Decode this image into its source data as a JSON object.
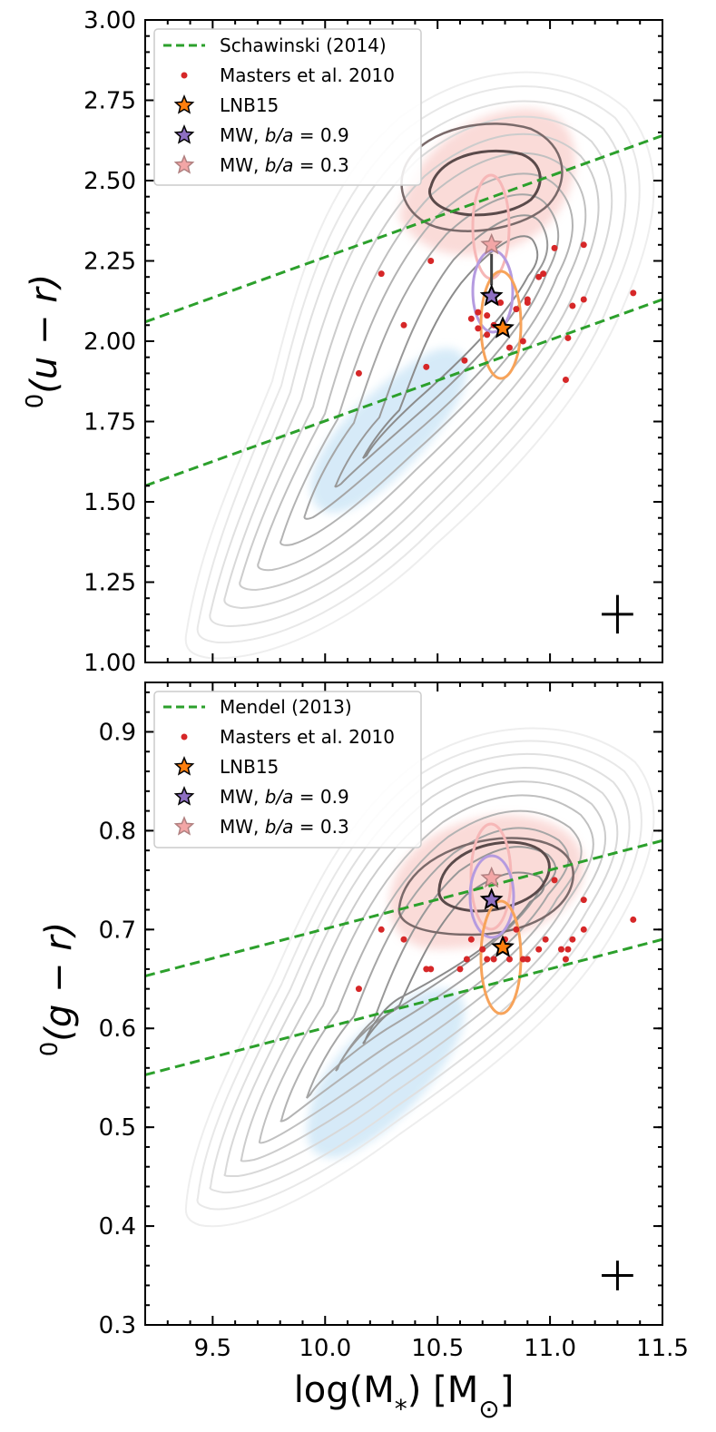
{
  "xlabel_main": "log(M",
  "xlabel_sub": "*",
  "xlabel_unit": ") [M",
  "xlabel_sun": "⊙",
  "xlabel_end": "]",
  "chart_data": [
    {
      "type": "scatter",
      "panel": "top",
      "ylabel_sup": "0",
      "ylabel_text": "(u − r)",
      "xlim": [
        9.2,
        11.5
      ],
      "ylim": [
        1.0,
        3.0
      ],
      "x_ticks": [
        "9.5",
        "10.0",
        "10.5",
        "11.0",
        "11.5"
      ],
      "x_tick_values": [
        9.5,
        10.0,
        10.5,
        11.0,
        11.5
      ],
      "y_ticks": [
        "1.00",
        "1.25",
        "1.50",
        "1.75",
        "2.00",
        "2.25",
        "2.50",
        "2.75",
        "3.00"
      ],
      "y_tick_values": [
        1.0,
        1.25,
        1.5,
        1.75,
        2.0,
        2.25,
        2.5,
        2.75,
        3.0
      ],
      "legend": {
        "position": "top-left",
        "entries": [
          {
            "label": "Schawinski (2014)",
            "kind": "dashed-line",
            "color": "#2ca02c"
          },
          {
            "label": "Masters et al. 2010",
            "kind": "dot",
            "color": "#d62728"
          },
          {
            "label": "LNB15",
            "kind": "star",
            "color": "#ff7f0e"
          },
          {
            "label_main": "MW, ",
            "label_ratio": "b/a",
            "label_value": " = 0.9",
            "kind": "star",
            "color": "#8e6fc2"
          },
          {
            "label_main": "MW, ",
            "label_ratio": "b/a",
            "label_value": " = 0.3",
            "kind": "star",
            "color": "#f3a6a6"
          }
        ]
      },
      "divider_lines": [
        {
          "name": "green-valley-upper",
          "x": [
            9.2,
            11.5
          ],
          "y": [
            2.06,
            2.64
          ],
          "color": "#2ca02c"
        },
        {
          "name": "green-valley-lower",
          "x": [
            9.2,
            11.5
          ],
          "y": [
            1.55,
            2.13
          ],
          "color": "#2ca02c"
        }
      ],
      "masters_points": {
        "x": [
          10.15,
          10.25,
          10.35,
          10.45,
          10.47,
          10.62,
          10.65,
          10.68,
          10.68,
          10.72,
          10.72,
          10.75,
          10.78,
          10.8,
          10.82,
          10.85,
          10.88,
          10.9,
          10.9,
          10.95,
          10.97,
          11.02,
          11.07,
          11.08,
          11.1,
          11.15,
          11.15,
          11.37
        ],
        "y": [
          1.9,
          2.21,
          2.05,
          1.92,
          2.25,
          1.94,
          2.07,
          2.09,
          2.04,
          2.02,
          2.08,
          2.05,
          2.12,
          2.03,
          1.98,
          2.1,
          2.0,
          2.12,
          2.13,
          2.2,
          2.21,
          2.29,
          1.88,
          2.01,
          2.11,
          2.13,
          2.3,
          2.15
        ]
      },
      "lnb15": {
        "x": 10.79,
        "y": 2.04
      },
      "mw_09": {
        "x": 10.74,
        "y": 2.14
      },
      "mw_03": {
        "x": 10.74,
        "y": 2.3
      },
      "error_bar": {
        "x": 11.3,
        "y": 1.15,
        "xerr": 0.07,
        "yerr": 0.06
      }
    },
    {
      "type": "scatter",
      "panel": "bottom",
      "ylabel_sup": "0",
      "ylabel_text": "(g − r)",
      "xlim": [
        9.2,
        11.5
      ],
      "ylim": [
        0.3,
        0.95
      ],
      "x_ticks": [
        "9.5",
        "10.0",
        "10.5",
        "11.0",
        "11.5"
      ],
      "x_tick_values": [
        9.5,
        10.0,
        10.5,
        11.0,
        11.5
      ],
      "y_ticks": [
        "0.3",
        "0.4",
        "0.5",
        "0.6",
        "0.7",
        "0.8",
        "0.9"
      ],
      "y_tick_values": [
        0.3,
        0.4,
        0.5,
        0.6,
        0.7,
        0.8,
        0.9
      ],
      "legend": {
        "position": "top-left",
        "entries": [
          {
            "label": "Mendel (2013)",
            "kind": "dashed-line",
            "color": "#2ca02c"
          },
          {
            "label": "Masters et al. 2010",
            "kind": "dot",
            "color": "#d62728"
          },
          {
            "label": "LNB15",
            "kind": "star",
            "color": "#ff7f0e"
          },
          {
            "label_main": "MW, ",
            "label_ratio": "b/a",
            "label_value": " = 0.9",
            "kind": "star",
            "color": "#8e6fc2"
          },
          {
            "label_main": "MW, ",
            "label_ratio": "b/a",
            "label_value": " = 0.3",
            "kind": "star",
            "color": "#f3a6a6"
          }
        ]
      },
      "divider_lines": [
        {
          "name": "red-sequence-lower",
          "x": [
            9.2,
            11.5
          ],
          "y": [
            0.653,
            0.79
          ],
          "color": "#2ca02c"
        },
        {
          "name": "blue-cloud-upper",
          "x": [
            9.2,
            11.5
          ],
          "y": [
            0.553,
            0.69
          ],
          "color": "#2ca02c"
        }
      ],
      "masters_points": {
        "x": [
          10.15,
          10.25,
          10.35,
          10.45,
          10.47,
          10.6,
          10.63,
          10.65,
          10.7,
          10.72,
          10.75,
          10.8,
          10.82,
          10.85,
          10.88,
          10.9,
          10.95,
          10.98,
          11.02,
          11.05,
          11.07,
          11.08,
          11.1,
          11.15,
          11.15,
          11.37
        ],
        "y": [
          0.64,
          0.7,
          0.69,
          0.66,
          0.66,
          0.66,
          0.67,
          0.69,
          0.68,
          0.67,
          0.67,
          0.69,
          0.67,
          0.7,
          0.67,
          0.67,
          0.68,
          0.69,
          0.75,
          0.68,
          0.67,
          0.68,
          0.69,
          0.7,
          0.73,
          0.71
        ]
      },
      "lnb15": {
        "x": 10.79,
        "y": 0.682
      },
      "mw_09": {
        "x": 10.74,
        "y": 0.73
      },
      "mw_03": {
        "x": 10.74,
        "y": 0.752
      },
      "error_bar": {
        "x": 11.3,
        "y": 0.35,
        "xerr": 0.07,
        "yerr": 0.015
      }
    }
  ]
}
